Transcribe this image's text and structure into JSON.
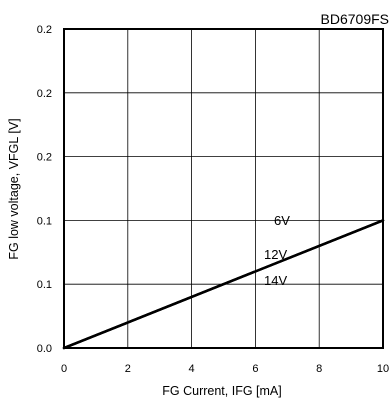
{
  "chart_data": {
    "type": "line",
    "title": "BD6709FS",
    "xlabel": "FG Current, IFG [mA]",
    "ylabel": "FG low voltage, VFGL [V]",
    "xlim": [
      0,
      10
    ],
    "ylim": [
      0,
      0.25
    ],
    "xticks": [
      0,
      2,
      4,
      6,
      8,
      10
    ],
    "xtick_labels": [
      "0",
      "2",
      "4",
      "6",
      "8",
      "10"
    ],
    "yticks": [
      0,
      0.05,
      0.1,
      0.15,
      0.2,
      0.25
    ],
    "ytick_labels": [
      "0.0",
      "0.1",
      "0.1",
      "0.2",
      "0.2",
      "0.2"
    ],
    "grid": true,
    "series": [
      {
        "name": "6V",
        "x": [
          0,
          10
        ],
        "y": [
          0,
          0.1
        ]
      },
      {
        "name": "12V",
        "x": [
          0,
          10
        ],
        "y": [
          0,
          0.1
        ]
      },
      {
        "name": "14V",
        "x": [
          0,
          10
        ],
        "y": [
          0,
          0.1
        ]
      }
    ],
    "line_color": "#000000"
  }
}
